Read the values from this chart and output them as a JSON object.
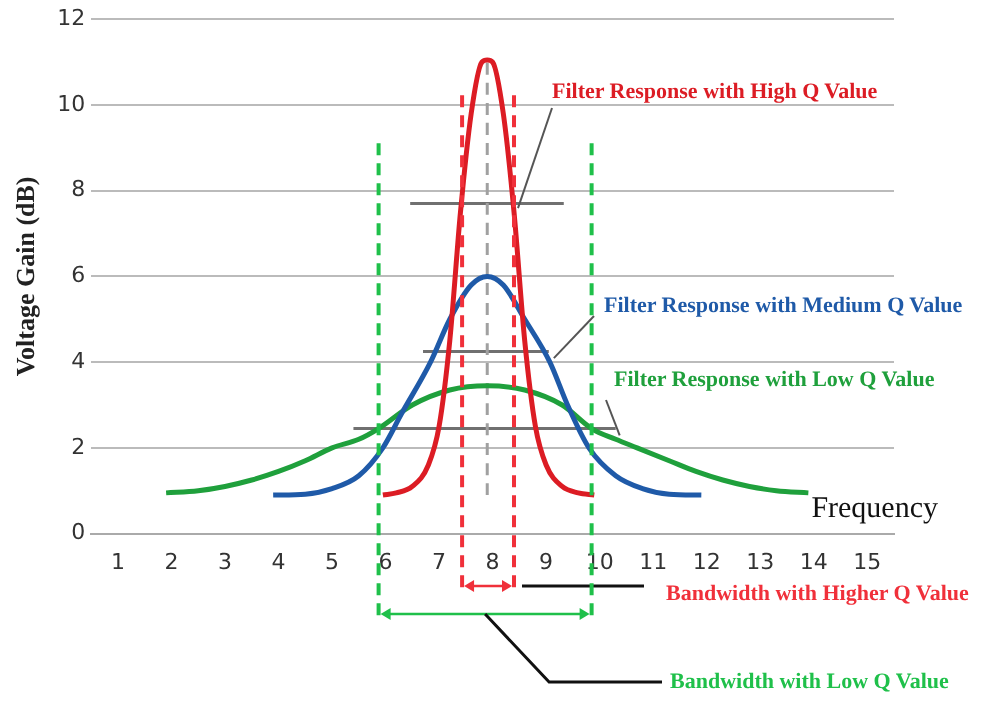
{
  "chart_data": {
    "type": "line",
    "xlabel": "Frequency",
    "ylabel": "Voltage Gain (dB)",
    "xlim": [
      0.5,
      15.5
    ],
    "xticks": [
      1,
      2,
      3,
      4,
      5,
      6,
      7,
      8,
      9,
      10,
      11,
      12,
      13,
      14,
      15
    ],
    "ylim": [
      0,
      12
    ],
    "yticks": [
      0,
      2,
      4,
      6,
      8,
      10,
      12
    ],
    "grid": "y",
    "legend": false,
    "series": [
      {
        "name": "Filter Response with High Q Value",
        "color": "#dc1c24",
        "x": [
          5.95,
          6.2,
          6.5,
          6.8,
          7.0,
          7.2,
          7.4,
          7.6,
          7.8,
          7.9,
          8.0,
          8.2,
          8.4,
          8.6,
          8.8,
          9.0,
          9.3,
          9.6,
          9.9
        ],
        "values": [
          0.9,
          0.95,
          1.1,
          1.6,
          2.5,
          4.5,
          7.5,
          9.8,
          11,
          11.05,
          11,
          9.8,
          7.5,
          4.5,
          2.5,
          1.6,
          1.1,
          0.95,
          0.9
        ]
      },
      {
        "name": "Filter Response with Medium Q Value",
        "color": "#1f5aa8",
        "x": [
          3.9,
          4.5,
          5.0,
          5.5,
          5.95,
          6.3,
          6.84,
          7.2,
          7.6,
          7.9,
          8.2,
          8.6,
          9.07,
          9.4,
          9.8,
          10.3,
          10.8,
          11.3,
          11.9
        ],
        "values": [
          0.9,
          0.92,
          1.05,
          1.35,
          2,
          2.8,
          4,
          5,
          5.8,
          6,
          5.8,
          5,
          4,
          3,
          2,
          1.35,
          1.05,
          0.92,
          0.9
        ]
      },
      {
        "name": "Filter Response with Low Q Value",
        "color": "#1fa03c",
        "x": [
          1.9,
          2.5,
          3.0,
          3.5,
          4.0,
          4.5,
          5.0,
          5.5,
          5.87,
          6.5,
          7.2,
          7.9,
          8.6,
          9.3,
          9.85,
          10.3,
          10.7,
          11.3,
          11.8,
          12.3,
          12.8,
          13.3,
          13.9
        ],
        "values": [
          0.95,
          1,
          1.1,
          1.25,
          1.45,
          1.7,
          2,
          2.2,
          2.45,
          3,
          3.35,
          3.45,
          3.35,
          3,
          2.45,
          2.2,
          2,
          1.7,
          1.45,
          1.25,
          1.1,
          1,
          0.95
        ]
      },
      {
        "color": "#a0a0a0",
        "line_style": "dashed",
        "x": [
          7.9,
          7.9
        ],
        "values": [
          0.9,
          11
        ]
      },
      {
        "color": "#707070",
        "x": [
          6.46,
          9.33
        ],
        "values": [
          7.7,
          7.7
        ]
      },
      {
        "color": "#707070",
        "x": [
          6.7,
          9.05
        ],
        "values": [
          4.25,
          4.25
        ]
      },
      {
        "color": "#707070",
        "x": [
          5.4,
          10.3
        ],
        "values": [
          2.45,
          2.45
        ]
      }
    ],
    "ref_lines": [
      {
        "axis": "x",
        "value": 7.43,
        "color": "#f0303a",
        "line_style": "dashed"
      },
      {
        "axis": "x",
        "value": 8.4,
        "color": "#f0303a",
        "line_style": "dashed",
        "label": "Bandwidth with Higher Q Value"
      },
      {
        "axis": "x",
        "value": 5.87,
        "color": "#1fc04a",
        "line_style": "dashed"
      },
      {
        "axis": "x",
        "value": 9.85,
        "color": "#1fc04a",
        "line_style": "dashed",
        "label": "Bandwidth with Low Q Value"
      }
    ]
  }
}
